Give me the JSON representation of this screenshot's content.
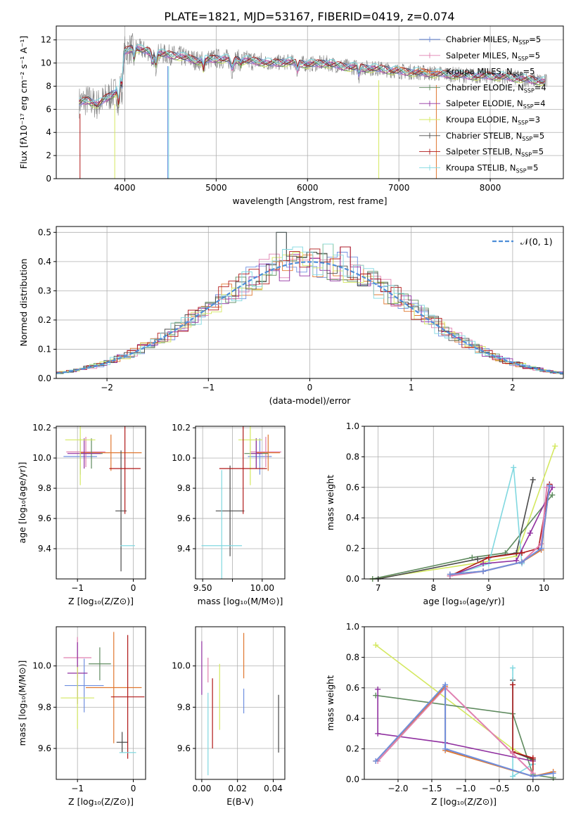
{
  "title": "PLATE=1821, MJD=53167, FIBERID=0419, z=0.074",
  "colors": [
    "#6f8fdf",
    "#e080b0",
    "#e07830",
    "#5e8a5e",
    "#9030a0",
    "#d4e860",
    "#4a4a4a",
    "#b01818",
    "#80d8e0"
  ],
  "chart_data": [
    {
      "id": "spectrum",
      "type": "line",
      "xlabel": "wavelength [Angstrom, rest frame]",
      "ylabel": "Flux [fλ10⁻¹⁷ erg cm⁻² s⁻¹ A⁻¹]",
      "xlim": [
        3250,
        8800
      ],
      "ylim": [
        0,
        13.2
      ],
      "xticks": [
        4000,
        5000,
        6000,
        7000,
        8000
      ],
      "yticks": [
        0,
        2,
        4,
        6,
        8,
        10,
        12
      ],
      "legend": "top-right",
      "data_color": "#808080",
      "series": [
        {
          "name": "Chabrier MILES, N_SSP=5",
          "label": "Chabrier MILES, N",
          "sub": "SSP",
          "suffix": "=5"
        },
        {
          "name": "Salpeter MILES, N_SSP=5",
          "label": "Salpeter MILES, N",
          "sub": "SSP",
          "suffix": "=5"
        },
        {
          "name": "Kroupa MILES, N_SSP=5",
          "label": "Kroupa MILES, N",
          "sub": "SSP",
          "suffix": "=5"
        },
        {
          "name": "Chabrier ELODIE, N_SSP=4",
          "label": "Chabrier ELODIE, N",
          "sub": "SSP",
          "suffix": "=4"
        },
        {
          "name": "Salpeter ELODIE, N_SSP=4",
          "label": "Salpeter ELODIE, N",
          "sub": "SSP",
          "suffix": "=4"
        },
        {
          "name": "Kroupa ELODIE, N_SSP=3",
          "label": "Kroupa ELODIE, N",
          "sub": "SSP",
          "suffix": "=3"
        },
        {
          "name": "Chabrier STELIB, N_SSP=5",
          "label": "Chabrier STELIB, N",
          "sub": "SSP",
          "suffix": "=5"
        },
        {
          "name": "Salpeter STELIB, N_SSP=5",
          "label": "Salpeter STELIB, N",
          "sub": "SSP",
          "suffix": "=5"
        },
        {
          "name": "Kroupa STELIB, N_SSP=5",
          "label": "Kroupa STELIB, N",
          "sub": "SSP",
          "suffix": "=5"
        }
      ],
      "continuum": {
        "x": [
          3500,
          3600,
          3700,
          3800,
          3900,
          3950,
          4000,
          4100,
          4200,
          4400,
          4600,
          4800,
          5000,
          5200,
          5400,
          5600,
          5800,
          6000,
          6200,
          6400,
          6600,
          6800,
          7000,
          7200,
          7400,
          7600,
          7800,
          8000,
          8200,
          8400,
          8600
        ],
        "y": [
          6.6,
          6.8,
          6.4,
          7.0,
          7.5,
          9.0,
          11.0,
          11.4,
          11.1,
          10.8,
          10.6,
          10.2,
          10.4,
          10.3,
          10.2,
          10.0,
          10.1,
          9.9,
          10.0,
          9.7,
          9.6,
          9.5,
          9.3,
          9.2,
          9.1,
          9.0,
          8.9,
          8.9,
          8.8,
          8.6,
          8.4
        ]
      }
    },
    {
      "id": "residuals",
      "type": "histogram",
      "xlabel": "(data-model)/error",
      "ylabel": "Normed distribution",
      "xlim": [
        -2.5,
        2.5
      ],
      "ylim": [
        0,
        0.52
      ],
      "xticks": [
        -2,
        -1,
        0,
        1,
        2
      ],
      "yticks": [
        0.0,
        0.1,
        0.2,
        0.3,
        0.4,
        0.5
      ],
      "legend": "top-right",
      "reference_label": "𝒩(0, 1)",
      "bin_width": 0.1,
      "peak_bins": [
        {
          "x": -0.25,
          "y": 0.5
        },
        {
          "x": 0.35,
          "y": 0.45
        },
        {
          "x": 0.15,
          "y": 0.46
        }
      ]
    },
    {
      "id": "age_vs_Z",
      "type": "errorbar",
      "xlabel": "Z [log₁₀(Z/Z⊙)]",
      "ylabel": "age  [log₁₀(age/yr)]",
      "xlim": [
        -1.38,
        0.22
      ],
      "ylim": [
        9.2,
        10.21
      ],
      "xticks": [
        -1,
        0
      ],
      "xticklabels": [
        "−1",
        "0"
      ],
      "yticks": [
        9.4,
        9.6,
        9.8,
        10.0,
        10.2
      ],
      "points": [
        {
          "c": 0,
          "x": -0.95,
          "y": 10.01,
          "xe": 0.3,
          "ye": 0.12
        },
        {
          "c": 1,
          "x": -0.85,
          "y": 10.04,
          "xe": 0.35,
          "ye": 0.1
        },
        {
          "c": 2,
          "x": -0.4,
          "y": 10.035,
          "xe": 0.55,
          "ye": 0.12
        },
        {
          "c": 3,
          "x": -0.75,
          "y": 10.03,
          "xe": 0.2,
          "ye": 0.1
        },
        {
          "c": 4,
          "x": -0.88,
          "y": 10.03,
          "xe": 0.3,
          "ye": 0.1
        },
        {
          "c": 5,
          "x": -0.95,
          "y": 10.12,
          "xe": 0.27,
          "ye": 0.3
        },
        {
          "c": 6,
          "x": -0.22,
          "y": 9.65,
          "xe": 0.1,
          "ye": 0.4
        },
        {
          "c": 7,
          "x": -0.15,
          "y": 9.93,
          "xe": 0.28,
          "ye": 0.3
        },
        {
          "c": 8,
          "x": -0.1,
          "y": 9.42,
          "xe": 0.13,
          "ye": 0.0
        }
      ]
    },
    {
      "id": "age_vs_mass",
      "type": "errorbar",
      "xlabel": "mass [log₁₀(M/M⊙)]",
      "ylabel": "",
      "xlim": [
        9.44,
        10.19
      ],
      "ylim": [
        9.2,
        10.21
      ],
      "xticks": [
        9.5,
        9.75,
        10.0
      ],
      "xticklabels": [
        "9.50",
        "",
        "10.00"
      ],
      "yticks": [
        9.4,
        9.6,
        9.8,
        10.0,
        10.2
      ],
      "points": [
        {
          "c": 0,
          "x": 9.98,
          "y": 10.01,
          "xe": 0.1,
          "ye": 0.12
        },
        {
          "c": 1,
          "x": 10.03,
          "y": 10.04,
          "xe": 0.13,
          "ye": 0.1
        },
        {
          "c": 2,
          "x": 10.05,
          "y": 10.035,
          "xe": 0.1,
          "ye": 0.12
        },
        {
          "c": 3,
          "x": 9.95,
          "y": 10.03,
          "xe": 0.1,
          "ye": 0.1
        },
        {
          "c": 4,
          "x": 9.95,
          "y": 10.03,
          "xe": 0.05,
          "ye": 0.1
        },
        {
          "c": 5,
          "x": 9.9,
          "y": 10.12,
          "xe": 0.1,
          "ye": 0.3
        },
        {
          "c": 6,
          "x": 9.73,
          "y": 9.65,
          "xe": 0.12,
          "ye": 0.3
        },
        {
          "c": 7,
          "x": 9.84,
          "y": 9.93,
          "xe": 0.2,
          "ye": 0.3
        },
        {
          "c": 8,
          "x": 9.66,
          "y": 9.42,
          "xe": 0.17,
          "ye": 0.5
        }
      ]
    },
    {
      "id": "weight_vs_age",
      "type": "line",
      "xlabel": "age  [log₁₀(age/yr)]",
      "ylabel": "mass weight",
      "xlim": [
        6.75,
        10.35
      ],
      "ylim": [
        0,
        1.0
      ],
      "xticks": [
        7,
        8,
        9,
        10
      ],
      "yticks": [
        0.0,
        0.2,
        0.4,
        0.6,
        0.8,
        1.0
      ],
      "series": [
        {
          "c": 5,
          "x": [
            6.9,
            8.9,
            9.5,
            10.2
          ],
          "y": [
            0.0,
            0.11,
            0.15,
            0.87
          ]
        },
        {
          "c": 3,
          "x": [
            6.9,
            8.7,
            9.3,
            10.15
          ],
          "y": [
            0.0,
            0.14,
            0.17,
            0.55
          ]
        },
        {
          "c": 6,
          "x": [
            7.0,
            8.8,
            9.5,
            9.8
          ],
          "y": [
            0.0,
            0.13,
            0.17,
            0.65
          ]
        },
        {
          "c": 8,
          "x": [
            8.3,
            9.0,
            9.45,
            9.6
          ],
          "y": [
            0.02,
            0.1,
            0.73,
            0.1
          ]
        },
        {
          "c": 4,
          "x": [
            8.3,
            8.9,
            9.5,
            9.75,
            10.15
          ],
          "y": [
            0.02,
            0.1,
            0.12,
            0.3,
            0.6
          ]
        },
        {
          "c": 7,
          "x": [
            8.3,
            9.0,
            9.6,
            9.9,
            10.1
          ],
          "y": [
            0.02,
            0.14,
            0.17,
            0.2,
            0.62
          ]
        },
        {
          "c": 1,
          "x": [
            8.3,
            8.9,
            9.6,
            9.95,
            10.05
          ],
          "y": [
            0.02,
            0.05,
            0.11,
            0.23,
            0.6
          ]
        },
        {
          "c": 2,
          "x": [
            8.3,
            8.9,
            9.6,
            9.95,
            10.1
          ],
          "y": [
            0.03,
            0.05,
            0.11,
            0.19,
            0.61
          ]
        },
        {
          "c": 0,
          "x": [
            8.3,
            8.9,
            9.6,
            9.95,
            10.1
          ],
          "y": [
            0.03,
            0.05,
            0.11,
            0.2,
            0.61
          ]
        }
      ]
    },
    {
      "id": "mass_vs_Z",
      "type": "errorbar",
      "xlabel": "Z [log₁₀(Z/Z⊙)]",
      "ylabel": "mass [log₁₀(M/M⊙)]",
      "xlim": [
        -1.38,
        0.22
      ],
      "ylim": [
        9.45,
        10.19
      ],
      "xticks": [
        -1,
        0
      ],
      "xticklabels": [
        "−1",
        "0"
      ],
      "yticks": [
        9.6,
        9.8,
        10.0
      ],
      "points": [
        {
          "c": 0,
          "x": -0.88,
          "y": 9.905,
          "xe": 0.35,
          "ye": 0.13
        },
        {
          "c": 1,
          "x": -1.0,
          "y": 10.04,
          "xe": 0.25,
          "ye": 0.1
        },
        {
          "c": 2,
          "x": -0.35,
          "y": 9.895,
          "xe": 0.5,
          "ye": 0.27
        },
        {
          "c": 3,
          "x": -0.6,
          "y": 10.01,
          "xe": 0.2,
          "ye": 0.08
        },
        {
          "c": 4,
          "x": -1.0,
          "y": 9.965,
          "xe": 0.18,
          "ye": 0.15
        },
        {
          "c": 5,
          "x": -1.0,
          "y": 9.845,
          "xe": 0.3,
          "ye": 0.15
        },
        {
          "c": 6,
          "x": -0.2,
          "y": 9.63,
          "xe": 0.1,
          "ye": 0.05
        },
        {
          "c": 7,
          "x": -0.1,
          "y": 9.85,
          "xe": 0.3,
          "ye": 0.3
        },
        {
          "c": 8,
          "x": -0.1,
          "y": 9.58,
          "xe": 0.15,
          "ye": 0.0
        }
      ]
    },
    {
      "id": "mass_vs_EBV",
      "type": "errorbar",
      "xlabel": "E(B-V)",
      "ylabel": "",
      "xlim": [
        -0.0035,
        0.0465
      ],
      "ylim": [
        9.45,
        10.19
      ],
      "xticks": [
        0.0,
        0.02,
        0.04
      ],
      "xticklabels": [
        "0.00",
        "0.02",
        "0.04"
      ],
      "yticks": [
        9.6,
        9.8,
        10.0
      ],
      "points": [
        {
          "c": 4,
          "x": 0.0,
          "y": 9.99,
          "xe": 0,
          "ye": 0.13
        },
        {
          "c": 1,
          "x": 0.0035,
          "y": 9.98,
          "xe": 0,
          "ye": 0.06
        },
        {
          "c": 8,
          "x": 0.0035,
          "y": 9.67,
          "xe": 0,
          "ye": 0.2
        },
        {
          "c": 7,
          "x": 0.006,
          "y": 9.77,
          "xe": 0,
          "ye": 0.17
        },
        {
          "c": 5,
          "x": 0.01,
          "y": 9.85,
          "xe": 0,
          "ye": 0.16
        },
        {
          "c": 2,
          "x": 0.0235,
          "y": 10.05,
          "xe": 0,
          "ye": 0.11
        },
        {
          "c": 0,
          "x": 0.0235,
          "y": 9.83,
          "xe": 0,
          "ye": 0.06
        },
        {
          "c": 6,
          "x": 0.043,
          "y": 9.72,
          "xe": 0,
          "ye": 0.14
        }
      ]
    },
    {
      "id": "weight_vs_Z",
      "type": "line",
      "xlabel": "Z [log₁₀(Z/Z⊙)]",
      "ylabel": "mass weight",
      "xlim": [
        -2.5,
        0.45
      ],
      "ylim": [
        0,
        1.0
      ],
      "xticks": [
        -2.0,
        -1.5,
        -1.0,
        -0.5,
        0.0
      ],
      "xticklabels": [
        "−2.0",
        "−1.5",
        "−1.0",
        "−0.5",
        "0.0"
      ],
      "yticks": [
        0.0,
        0.2,
        0.4,
        0.6,
        0.8,
        1.0
      ],
      "series": [
        {
          "c": 5,
          "x": [
            -2.33,
            -0.3,
            0.0
          ],
          "y": [
            0.88,
            0.2,
            0.12
          ]
        },
        {
          "c": 3,
          "x": [
            -2.33,
            -0.3,
            0.0,
            0.3
          ],
          "y": [
            0.55,
            0.43,
            0.03,
            0.01
          ]
        },
        {
          "c": 6,
          "x": [
            -0.3,
            -0.3,
            0.0
          ],
          "y": [
            0.65,
            0.18,
            0.13
          ]
        },
        {
          "c": 8,
          "x": [
            -0.3,
            -0.3,
            0.0
          ],
          "y": [
            0.73,
            0.02,
            0.1
          ]
        },
        {
          "c": 4,
          "x": [
            -2.3,
            -2.3,
            -1.3,
            0.0
          ],
          "y": [
            0.59,
            0.3,
            0.24,
            0.12
          ]
        },
        {
          "c": 7,
          "x": [
            -0.3,
            -0.3,
            0.0,
            0.0
          ],
          "y": [
            0.62,
            0.18,
            0.14,
            0.02
          ]
        },
        {
          "c": 1,
          "x": [
            -2.3,
            -1.3,
            -0.3,
            0.0
          ],
          "y": [
            0.12,
            0.6,
            0.17,
            0.04
          ]
        },
        {
          "c": 2,
          "x": [
            -2.33,
            -1.3,
            -1.3,
            0.0,
            0.3
          ],
          "y": [
            0.12,
            0.61,
            0.19,
            0.02,
            0.05
          ]
        },
        {
          "c": 0,
          "x": [
            -2.33,
            -1.3,
            -1.3,
            0.0,
            0.3
          ],
          "y": [
            0.12,
            0.62,
            0.2,
            0.02,
            0.04
          ]
        }
      ]
    }
  ]
}
